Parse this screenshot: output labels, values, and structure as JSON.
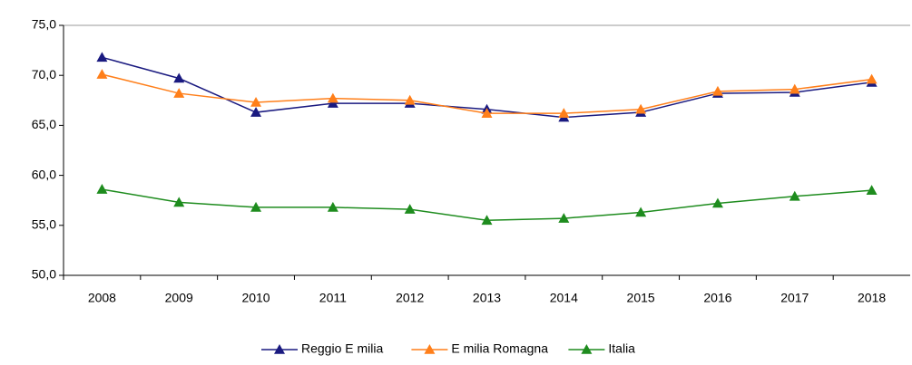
{
  "chart_data": {
    "type": "line",
    "categories": [
      "2008",
      "2009",
      "2010",
      "2011",
      "2012",
      "2013",
      "2014",
      "2015",
      "2016",
      "2017",
      "2018"
    ],
    "series": [
      {
        "name": "Reggio E milia",
        "color": "#1a1a80",
        "values": [
          71.8,
          69.7,
          66.3,
          67.2,
          67.2,
          66.6,
          65.8,
          66.3,
          68.2,
          68.3,
          69.3
        ]
      },
      {
        "name": "E milia Romagna",
        "color": "#ff7f1a",
        "values": [
          70.1,
          68.2,
          67.3,
          67.7,
          67.5,
          66.2,
          66.2,
          66.6,
          68.4,
          68.6,
          69.6
        ]
      },
      {
        "name": "Italia",
        "color": "#1e8c1e",
        "values": [
          58.6,
          57.3,
          56.8,
          56.8,
          56.6,
          55.5,
          55.7,
          56.3,
          57.2,
          57.9,
          58.5
        ]
      }
    ],
    "ylim": [
      50,
      75
    ],
    "yticks": [
      {
        "value": 50,
        "label": "50,0"
      },
      {
        "value": 55,
        "label": "55,0"
      },
      {
        "value": 60,
        "label": "60,0"
      },
      {
        "value": 65,
        "label": "65,0"
      },
      {
        "value": 70,
        "label": "70,0"
      },
      {
        "value": 75,
        "label": "75,0"
      }
    ],
    "grid": false
  }
}
